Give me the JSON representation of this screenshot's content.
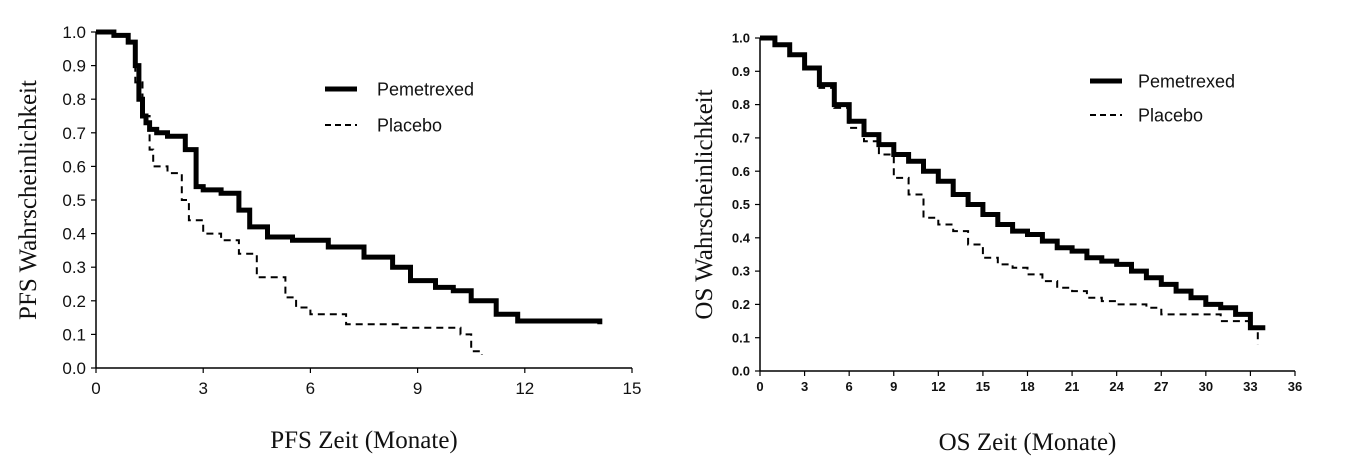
{
  "chart_data": [
    {
      "type": "line",
      "title": "",
      "xlabel": "PFS Zeit (Monate)",
      "ylabel": "PFS Wahrscheinlichkeit",
      "xlim": [
        0,
        15
      ],
      "ylim": [
        0,
        1
      ],
      "xticks": [
        "0",
        "3",
        "6",
        "9",
        "12",
        "15"
      ],
      "yticks": [
        "0.0",
        "0.1",
        "0.2",
        "0.3",
        "0.4",
        "0.5",
        "0.6",
        "0.7",
        "0.8",
        "0.9",
        "1.0"
      ],
      "grid": false,
      "legend_position": "top-right",
      "series": [
        {
          "name": "Pemetrexed",
          "style": "solid",
          "x": [
            0,
            0.5,
            0.9,
            1.1,
            1.2,
            1.3,
            1.4,
            1.5,
            1.7,
            2.0,
            2.5,
            2.8,
            3.0,
            3.5,
            4.0,
            4.3,
            4.8,
            5.5,
            6.5,
            7.5,
            8.3,
            8.8,
            9.5,
            10.0,
            10.5,
            11.2,
            11.8,
            14.1
          ],
          "y": [
            1.0,
            0.99,
            0.97,
            0.9,
            0.8,
            0.75,
            0.73,
            0.71,
            0.7,
            0.69,
            0.65,
            0.54,
            0.53,
            0.52,
            0.47,
            0.42,
            0.39,
            0.38,
            0.36,
            0.33,
            0.3,
            0.26,
            0.24,
            0.23,
            0.2,
            0.16,
            0.14,
            0.13
          ]
        },
        {
          "name": "Placebo",
          "style": "dashed",
          "x": [
            0,
            0.5,
            0.9,
            1.1,
            1.3,
            1.5,
            1.6,
            2.0,
            2.4,
            2.6,
            3.0,
            3.5,
            4.0,
            4.5,
            5.3,
            5.6,
            6.0,
            7.0,
            8.5,
            9.5,
            10.2,
            10.5,
            10.8
          ],
          "y": [
            1.0,
            0.99,
            0.97,
            0.85,
            0.75,
            0.65,
            0.6,
            0.58,
            0.5,
            0.44,
            0.4,
            0.38,
            0.34,
            0.27,
            0.21,
            0.18,
            0.16,
            0.13,
            0.12,
            0.12,
            0.1,
            0.05,
            0.04
          ]
        }
      ]
    },
    {
      "type": "line",
      "title": "",
      "xlabel": "OS Zeit (Monate)",
      "ylabel": "OS Wahrscheinlichkeit",
      "xlim": [
        0,
        36
      ],
      "ylim": [
        0,
        1
      ],
      "xticks": [
        "0",
        "3",
        "6",
        "9",
        "12",
        "15",
        "18",
        "21",
        "24",
        "27",
        "30",
        "33",
        "36"
      ],
      "yticks": [
        "0.0",
        "0.1",
        "0.2",
        "0.3",
        "0.4",
        "0.5",
        "0.6",
        "0.7",
        "0.8",
        "0.9",
        "1.0"
      ],
      "grid": false,
      "legend_position": "top-right",
      "series": [
        {
          "name": "Pemetrexed",
          "style": "solid",
          "x": [
            0,
            1,
            2,
            3,
            4,
            5,
            6,
            7,
            8,
            9,
            10,
            11,
            12,
            13,
            14,
            15,
            16,
            17,
            18,
            19,
            20,
            21,
            22,
            23,
            24,
            25,
            26,
            27,
            28,
            29,
            30,
            31,
            32,
            33,
            34
          ],
          "y": [
            1.0,
            0.98,
            0.95,
            0.91,
            0.86,
            0.8,
            0.75,
            0.71,
            0.68,
            0.65,
            0.63,
            0.6,
            0.57,
            0.53,
            0.5,
            0.47,
            0.44,
            0.42,
            0.41,
            0.39,
            0.37,
            0.36,
            0.34,
            0.33,
            0.32,
            0.3,
            0.28,
            0.26,
            0.24,
            0.22,
            0.2,
            0.19,
            0.17,
            0.13,
            0.13
          ]
        },
        {
          "name": "Placebo",
          "style": "dashed",
          "x": [
            0,
            1,
            2,
            3,
            4,
            5,
            6,
            7,
            8,
            9,
            10,
            11,
            12,
            13,
            14,
            15,
            16,
            17,
            18,
            19,
            20,
            21,
            22,
            23,
            24,
            25,
            26,
            27,
            28,
            29,
            30,
            31,
            32,
            33,
            33.5
          ],
          "y": [
            1.0,
            0.98,
            0.95,
            0.91,
            0.85,
            0.79,
            0.73,
            0.69,
            0.65,
            0.58,
            0.53,
            0.46,
            0.44,
            0.42,
            0.38,
            0.34,
            0.32,
            0.31,
            0.29,
            0.27,
            0.25,
            0.24,
            0.22,
            0.21,
            0.2,
            0.2,
            0.19,
            0.17,
            0.17,
            0.17,
            0.17,
            0.15,
            0.15,
            0.13,
            0.08
          ]
        }
      ]
    }
  ]
}
